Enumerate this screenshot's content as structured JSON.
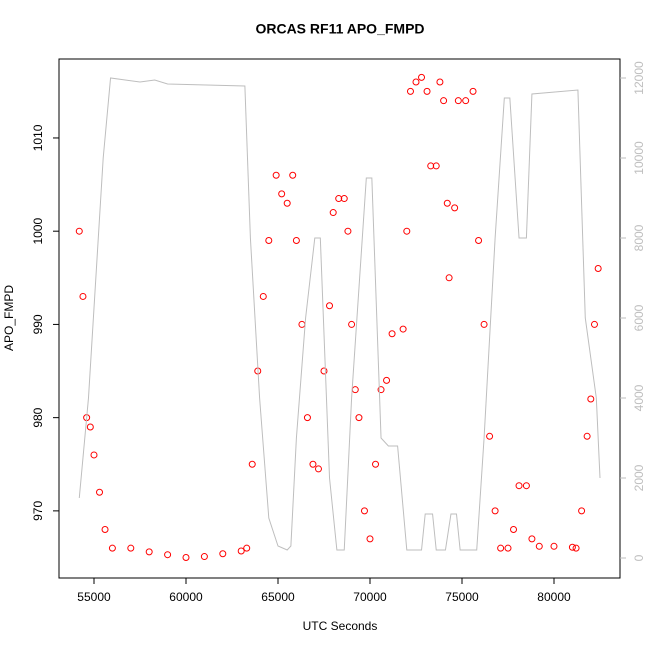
{
  "chart_data": {
    "type": "scatter",
    "title": "ORCAS RF11 APO_FMPD",
    "x_label": "UTC Seconds",
    "y_label": "APO_FMPD",
    "xlim": [
      53098,
      83587
    ],
    "ylim": [
      962.8,
      1018.47
    ],
    "y2lim": [
      -500,
      12475
    ],
    "xticks": [
      55000,
      60000,
      65000,
      70000,
      75000,
      80000
    ],
    "yticks": [
      970,
      980,
      990,
      1000,
      1010
    ],
    "y2ticks": [
      0,
      2000,
      4000,
      6000,
      8000,
      10000,
      12000
    ],
    "series": [
      {
        "color": "#ff0000",
        "x": [
          54200,
          54400,
          54600,
          54800,
          55000,
          55300,
          55600,
          56000,
          57000,
          58000,
          59000,
          60000,
          61000,
          62000,
          63000,
          63300,
          63600,
          63900,
          64200,
          64500,
          64900,
          65200,
          65500,
          65800,
          66000,
          66300,
          66600,
          66900,
          67200,
          67500,
          67800,
          68000,
          68300,
          68600,
          68800,
          69000,
          69200,
          69400,
          69700,
          70000,
          70300,
          70600,
          70900,
          71200,
          71800,
          72000,
          72200,
          72500,
          72800,
          73100,
          73300,
          73600,
          73800,
          74000,
          74200,
          74300,
          74600,
          74800,
          75200,
          75600,
          75900,
          76200,
          76500,
          76800,
          77100,
          77500,
          77800,
          78100,
          78500,
          78800,
          79200,
          80000,
          81000,
          81200,
          81500,
          81800,
          82000,
          82200,
          82400
        ],
        "values": [
          1000,
          993,
          980,
          979,
          976,
          972,
          968,
          966,
          966,
          965.6,
          965.3,
          965,
          965.1,
          965.4,
          965.7,
          966,
          975,
          985,
          993,
          999,
          1006,
          1004,
          1003,
          1006,
          999,
          990,
          980,
          975,
          974.5,
          985,
          992,
          1002,
          1003.5,
          1003.5,
          1000,
          990,
          983,
          980,
          970,
          967,
          975,
          983,
          984,
          989,
          989.5,
          1000,
          1015,
          1016,
          1016.5,
          1015,
          1007,
          1007,
          1016,
          1014,
          1003,
          995,
          1002.5,
          1014,
          1014,
          1015,
          999,
          990,
          978,
          970,
          966,
          966,
          968,
          972.7,
          972.7,
          967,
          966.2,
          966.2,
          966.1,
          966,
          970,
          978,
          982,
          990,
          996
        ]
      },
      {
        "color": "#bebebe",
        "axis": "y2",
        "x": [
          54200,
          54700,
          55500,
          55900,
          57500,
          58300,
          59000,
          63200,
          63500,
          64000,
          64500,
          65000,
          65500,
          65700,
          66000,
          66500,
          67000,
          67300,
          67800,
          68200,
          68600,
          69000,
          69800,
          70100,
          70600,
          71000,
          71500,
          72000,
          72800,
          73000,
          73400,
          73600,
          74100,
          74400,
          74700,
          74900,
          75800,
          76200,
          76800,
          77300,
          77600,
          78100,
          78500,
          78800,
          81300,
          81700,
          82300,
          82500
        ],
        "values": [
          1500,
          4000,
          10000,
          12000,
          11900,
          11950,
          11850,
          11800,
          8000,
          4000,
          1000,
          300,
          200,
          300,
          3000,
          6000,
          8000,
          8000,
          2000,
          200,
          200,
          4000,
          9500,
          9500,
          3000,
          2800,
          2800,
          200,
          200,
          1100,
          1100,
          200,
          200,
          1100,
          1100,
          200,
          200,
          3000,
          8000,
          11500,
          11500,
          8000,
          8000,
          11600,
          11700,
          6000,
          4000,
          2000
        ]
      }
    ]
  }
}
